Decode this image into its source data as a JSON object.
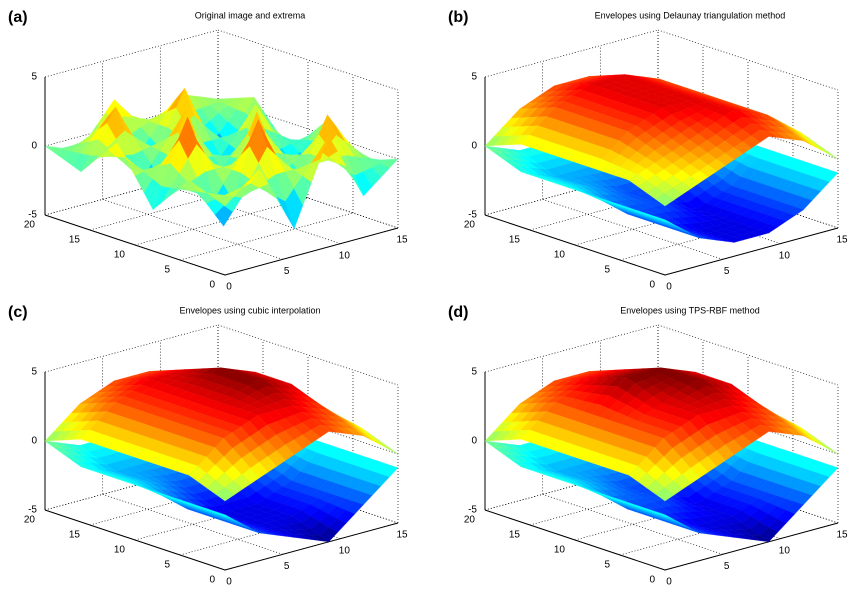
{
  "chart_data": [
    {
      "type": "surface",
      "panel_label": "(a)",
      "title": "Original image and extrema",
      "x": [
        0,
        3,
        6,
        9,
        12,
        15
      ],
      "y": [
        0,
        4,
        8,
        12,
        16,
        20
      ],
      "surfaces": [
        {
          "z": [
            [
              0,
              2,
              -3,
              3,
              -2,
              0
            ],
            [
              1,
              -3,
              4,
              -2,
              3,
              -1
            ],
            [
              -2,
              4,
              -3,
              3,
              -4,
              1
            ],
            [
              2,
              -3,
              3,
              -4,
              2,
              -2
            ],
            [
              -1,
              3,
              -2,
              3,
              -3,
              1
            ],
            [
              0,
              -1,
              2,
              -1,
              1,
              0
            ]
          ]
        }
      ],
      "xlim": [
        0,
        15
      ],
      "ylim": [
        0,
        20
      ],
      "zlim": [
        -5,
        5
      ],
      "xticks": [
        0,
        5,
        10,
        15
      ],
      "yticks": [
        0,
        5,
        10,
        15,
        20
      ],
      "zticks": [
        -5,
        0,
        5
      ]
    },
    {
      "type": "surface",
      "panel_label": "(b)",
      "title": "Envelopes using Delaunay triangulation method",
      "x": [
        0,
        3,
        6,
        9,
        12,
        15
      ],
      "y": [
        0,
        4,
        8,
        12,
        16,
        20
      ],
      "surfaces": [
        {
          "z": [
            [
              -1,
              -3,
              -4,
              -4,
              -3,
              -1
            ],
            [
              -1,
              -3,
              -4,
              -4,
              -3,
              -1
            ],
            [
              -1,
              -3,
              -3,
              -4,
              -3,
              -1
            ],
            [
              -1,
              -2,
              -3,
              -3,
              -2,
              -1
            ],
            [
              -1,
              -2,
              -2,
              -2,
              -2,
              -1
            ],
            [
              0,
              -1,
              -1,
              -1,
              -1,
              0
            ]
          ]
        },
        {
          "z": [
            [
              0,
              1,
              2,
              3,
              2,
              0
            ],
            [
              1,
              2,
              3,
              4,
              3,
              1
            ],
            [
              1,
              3,
              4,
              4,
              3,
              1
            ],
            [
              1,
              3,
              4,
              4,
              3,
              1
            ],
            [
              1,
              3,
              4,
              4,
              3,
              1
            ],
            [
              0,
              2,
              3,
              3,
              2,
              0
            ]
          ]
        }
      ],
      "xlim": [
        0,
        15
      ],
      "ylim": [
        0,
        20
      ],
      "zlim": [
        -5,
        5
      ],
      "xticks": [
        0,
        5,
        10,
        15
      ],
      "yticks": [
        0,
        5,
        10,
        15,
        20
      ],
      "zticks": [
        -5,
        0,
        5
      ]
    },
    {
      "type": "surface",
      "panel_label": "(c)",
      "title": "Envelopes using cubic interpolation",
      "x": [
        0,
        3,
        6,
        9,
        12,
        15
      ],
      "y": [
        0,
        4,
        8,
        12,
        16,
        20
      ],
      "surfaces": [
        {
          "z": [
            [
              -1,
              -3,
              -4,
              -5,
              -3,
              -1
            ],
            [
              -1,
              -3,
              -4,
              -4,
              -3,
              -1
            ],
            [
              -1,
              -3,
              -4,
              -4,
              -3,
              -1
            ],
            [
              -1,
              -2,
              -3,
              -3,
              -2,
              -1
            ],
            [
              -1,
              -2,
              -2,
              -2,
              -2,
              -1
            ],
            [
              0,
              -1,
              -1,
              -1,
              -1,
              0
            ]
          ]
        },
        {
          "z": [
            [
              0,
              1,
              2,
              3,
              2,
              0
            ],
            [
              1,
              3,
              4,
              4,
              3,
              1
            ],
            [
              1,
              3,
              4,
              5,
              4,
              1
            ],
            [
              1,
              3,
              4,
              5,
              4,
              1
            ],
            [
              1,
              3,
              4,
              4,
              3,
              1
            ],
            [
              0,
              2,
              3,
              3,
              2,
              0
            ]
          ]
        }
      ],
      "xlim": [
        0,
        15
      ],
      "ylim": [
        0,
        20
      ],
      "zlim": [
        -5,
        5
      ],
      "xticks": [
        0,
        5,
        10,
        15
      ],
      "yticks": [
        0,
        5,
        10,
        15,
        20
      ],
      "zticks": [
        -5,
        0,
        5
      ]
    },
    {
      "type": "surface",
      "panel_label": "(d)",
      "title": "Envelopes using TPS-RBF method",
      "x": [
        0,
        3,
        6,
        9,
        12,
        15
      ],
      "y": [
        0,
        4,
        8,
        12,
        16,
        20
      ],
      "surfaces": [
        {
          "z": [
            [
              -1,
              -3,
              -4,
              -5,
              -3,
              -1
            ],
            [
              -1,
              -3,
              -4,
              -4,
              -3,
              -1
            ],
            [
              -1,
              -3,
              -3,
              -4,
              -3,
              -1
            ],
            [
              -1,
              -2,
              -3,
              -3,
              -2,
              -1
            ],
            [
              -1,
              -2,
              -2,
              -2,
              -2,
              -1
            ],
            [
              0,
              -1,
              -1,
              -1,
              -1,
              0
            ]
          ]
        },
        {
          "z": [
            [
              0,
              1,
              2,
              3,
              2,
              0
            ],
            [
              1,
              3,
              4,
              4,
              3,
              1
            ],
            [
              1,
              3,
              4,
              5,
              4,
              1
            ],
            [
              1,
              3,
              5,
              5,
              4,
              1
            ],
            [
              1,
              3,
              4,
              4,
              3,
              1
            ],
            [
              0,
              2,
              3,
              3,
              2,
              0
            ]
          ]
        }
      ],
      "xlim": [
        0,
        15
      ],
      "ylim": [
        0,
        20
      ],
      "zlim": [
        -5,
        5
      ],
      "xticks": [
        0,
        5,
        10,
        15
      ],
      "yticks": [
        0,
        5,
        10,
        15,
        20
      ],
      "zticks": [
        -5,
        0,
        5
      ]
    }
  ]
}
